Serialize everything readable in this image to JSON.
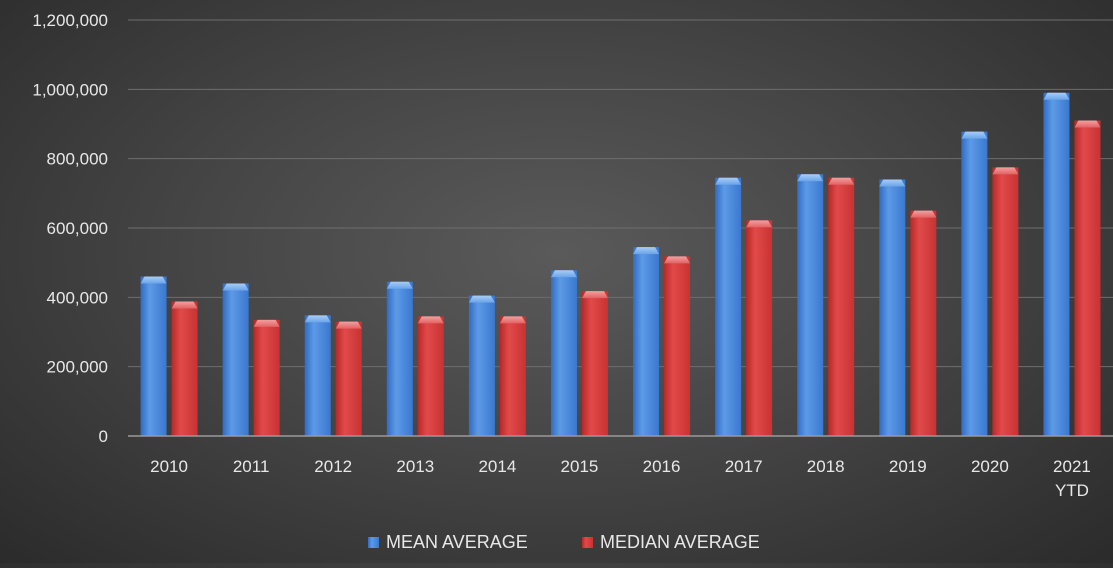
{
  "chart_data": {
    "type": "bar",
    "categories": [
      "2010",
      "2011",
      "2012",
      "2013",
      "2014",
      "2015",
      "2016",
      "2017",
      "2018",
      "2019",
      "2020",
      "2021\nYTD"
    ],
    "series": [
      {
        "name": "MEAN AVERAGE",
        "color": "#4a86d8",
        "values": [
          460000,
          440000,
          348000,
          445000,
          405000,
          478000,
          545000,
          745000,
          755000,
          740000,
          878000,
          990000
        ]
      },
      {
        "name": "MEDIAN AVERAGE",
        "color": "#d93a3a",
        "values": [
          388000,
          335000,
          330000,
          345000,
          345000,
          418000,
          518000,
          622000,
          745000,
          650000,
          775000,
          910000
        ]
      }
    ],
    "ylim": [
      0,
      1200000
    ],
    "yticks": [
      0,
      200000,
      400000,
      600000,
      800000,
      1000000,
      1200000
    ],
    "grid": true,
    "legend_position": "bottom",
    "title": "",
    "xlabel": "",
    "ylabel": ""
  }
}
